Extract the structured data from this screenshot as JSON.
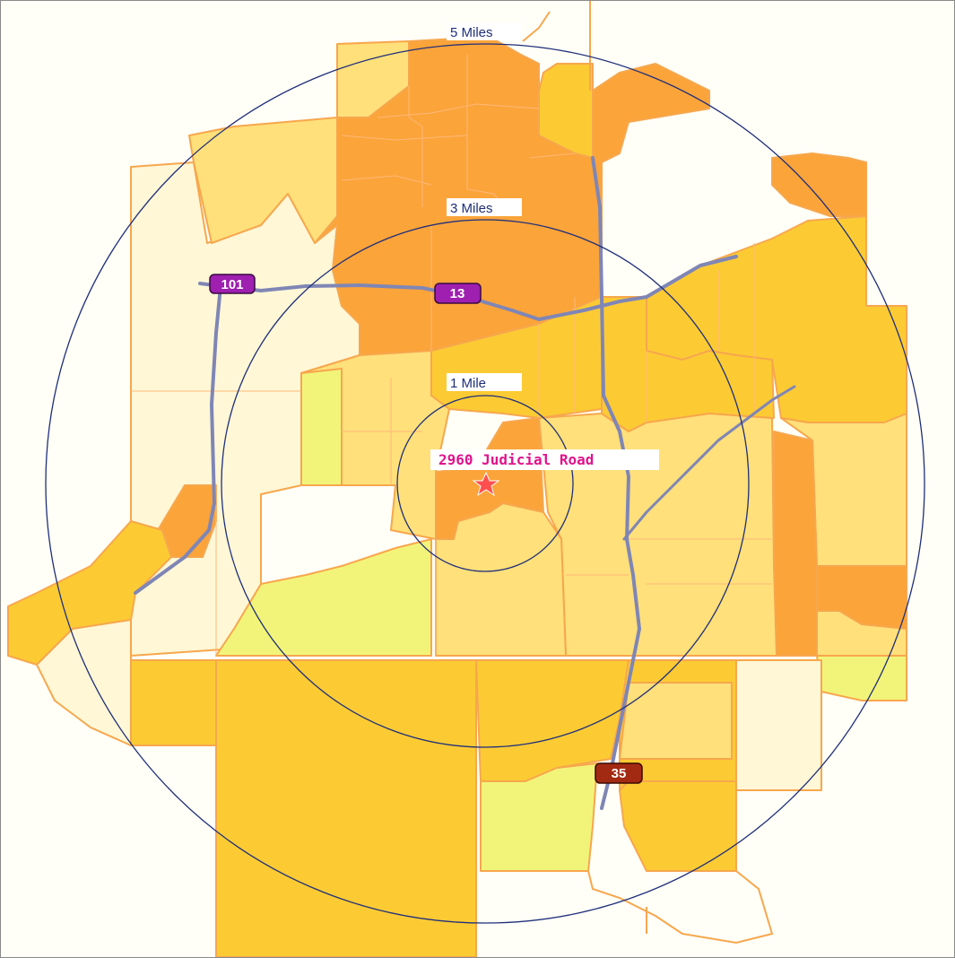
{
  "map": {
    "location_label": "2960 Judicial Road",
    "rings": [
      {
        "label": "1 Mile"
      },
      {
        "label": "3 Miles"
      },
      {
        "label": "5 Miles"
      }
    ],
    "route_shields": [
      {
        "label": "101",
        "color": "#9e1fb0"
      },
      {
        "label": "13",
        "color": "#9e1fb0"
      },
      {
        "label": "35",
        "color": "#a32a12"
      }
    ],
    "colors": {
      "background": "#fffef7",
      "lightest": "#fff7d6",
      "light": "#ffe07a",
      "pale_yellow": "#f2f47a",
      "medium": "#fccb34",
      "dark": "#fba43a",
      "boundary": "#f7a74d",
      "road": "#7f86b5",
      "ring": "#1f2f7a",
      "marker": "#ff4f4f",
      "address": "#e0138c"
    }
  }
}
